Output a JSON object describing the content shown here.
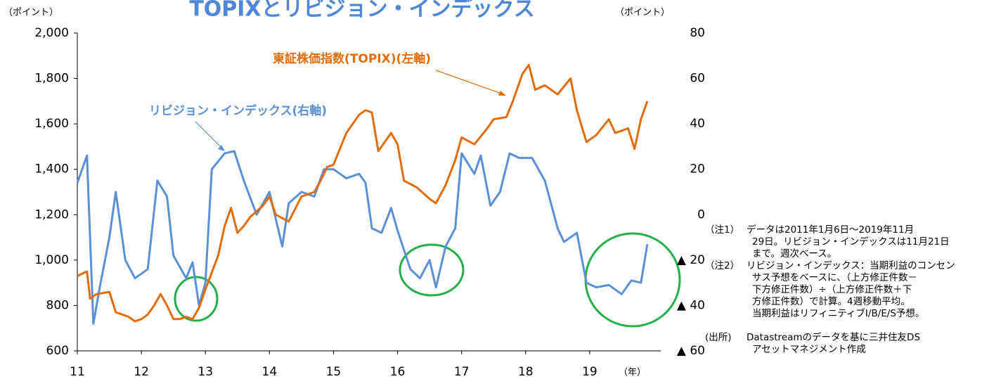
{
  "chart_data": {
    "type": "line",
    "title": "TOPIXとリビジョン・インデックス",
    "y_unit": "（ポイント）",
    "y2_unit": "（ポイント）",
    "x_unit": "（年）",
    "xlim": [
      2011,
      2020
    ],
    "xticks": [
      {
        "value": 2011,
        "label": "11"
      },
      {
        "value": 2012,
        "label": "12"
      },
      {
        "value": 2013,
        "label": "13"
      },
      {
        "value": 2014,
        "label": "14"
      },
      {
        "value": 2015,
        "label": "15"
      },
      {
        "value": 2016,
        "label": "16"
      },
      {
        "value": 2017,
        "label": "17"
      },
      {
        "value": 2018,
        "label": "18"
      },
      {
        "value": 2019,
        "label": "19"
      }
    ],
    "ylim": [
      600,
      2000
    ],
    "yticks": [
      600,
      800,
      {
        "value": 1000,
        "label": "1,000"
      },
      {
        "value": 1200,
        "label": "1,200"
      },
      {
        "value": 1400,
        "label": "1,400"
      },
      {
        "value": 1600,
        "label": "1,600"
      },
      {
        "value": 1800,
        "label": "1,800"
      },
      {
        "value": 2000,
        "label": "2,000"
      }
    ],
    "y2lim": [
      -60,
      80
    ],
    "y2ticks": [
      {
        "value": -60,
        "label": "▲ 60"
      },
      {
        "value": -40,
        "label": "▲ 40"
      },
      {
        "value": -20,
        "label": "▲ 20"
      },
      0,
      20,
      40,
      60,
      80
    ],
    "series": [
      {
        "name": "東証株価指数(TOPIX)(左軸)",
        "color": "#e36c0a",
        "x": [
          2011.0,
          2011.15,
          2011.2,
          2011.3,
          2011.5,
          2011.6,
          2011.8,
          2011.9,
          2012.0,
          2012.1,
          2012.2,
          2012.3,
          2012.4,
          2012.5,
          2012.6,
          2012.7,
          2012.8,
          2012.9,
          2013.0,
          2013.2,
          2013.3,
          2013.4,
          2013.5,
          2013.6,
          2013.7,
          2013.9,
          2014.0,
          2014.1,
          2014.3,
          2014.5,
          2014.7,
          2014.8,
          2014.9,
          2015.0,
          2015.2,
          2015.4,
          2015.5,
          2015.6,
          2015.7,
          2015.9,
          2016.0,
          2016.1,
          2016.3,
          2016.5,
          2016.6,
          2016.75,
          2016.9,
          2017.0,
          2017.2,
          2017.4,
          2017.5,
          2017.7,
          2017.8,
          2017.95,
          2018.05,
          2018.15,
          2018.3,
          2018.5,
          2018.7,
          2018.8,
          2018.95,
          2019.1,
          2019.3,
          2019.4,
          2019.6,
          2019.7,
          2019.8,
          2019.9
        ],
        "values": [
          930,
          950,
          830,
          850,
          860,
          770,
          750,
          730,
          740,
          760,
          800,
          850,
          800,
          740,
          740,
          750,
          740,
          790,
          870,
          1020,
          1150,
          1230,
          1120,
          1150,
          1190,
          1240,
          1280,
          1200,
          1170,
          1280,
          1300,
          1350,
          1410,
          1420,
          1560,
          1640,
          1660,
          1650,
          1480,
          1560,
          1510,
          1350,
          1320,
          1270,
          1250,
          1330,
          1440,
          1540,
          1510,
          1580,
          1620,
          1630,
          1700,
          1820,
          1860,
          1750,
          1770,
          1730,
          1800,
          1660,
          1520,
          1550,
          1620,
          1560,
          1580,
          1490,
          1620,
          1700
        ]
      },
      {
        "name": "リビジョン・インデックス(右軸)",
        "color": "#5b8fd6",
        "axis": "y2",
        "x": [
          2011.0,
          2011.15,
          2011.25,
          2011.35,
          2011.5,
          2011.6,
          2011.75,
          2011.9,
          2012.1,
          2012.25,
          2012.4,
          2012.5,
          2012.7,
          2012.8,
          2012.9,
          2013.0,
          2013.1,
          2013.3,
          2013.45,
          2013.6,
          2013.8,
          2014.0,
          2014.2,
          2014.3,
          2014.5,
          2014.7,
          2014.85,
          2015.0,
          2015.2,
          2015.4,
          2015.5,
          2015.6,
          2015.75,
          2015.9,
          2016.0,
          2016.2,
          2016.35,
          2016.5,
          2016.6,
          2016.75,
          2016.9,
          2017.0,
          2017.2,
          2017.3,
          2017.45,
          2017.6,
          2017.75,
          2017.9,
          2018.1,
          2018.3,
          2018.5,
          2018.6,
          2018.8,
          2018.95,
          2019.1,
          2019.3,
          2019.5,
          2019.65,
          2019.8,
          2019.9
        ],
        "values": [
          14,
          26,
          -48,
          -32,
          -10,
          10,
          -20,
          -28,
          -24,
          15,
          8,
          -18,
          -28,
          -21,
          -40,
          -30,
          20,
          27,
          28,
          15,
          0,
          10,
          -14,
          5,
          10,
          8,
          20,
          20,
          16,
          18,
          14,
          -6,
          -8,
          3,
          -7,
          -24,
          -28,
          -20,
          -32,
          -14,
          -6,
          27,
          18,
          26,
          4,
          10,
          27,
          25,
          25,
          15,
          -6,
          -12,
          -8,
          -30,
          -32,
          -31,
          -35,
          -29,
          -30,
          -13
        ]
      }
    ]
  },
  "notes": [
    {
      "label": "（注1）",
      "lines": [
        "データは2011年1月6日～2019年11月",
        "29日。リビジョン・インデックスは11月21日",
        "まで。週次ベース。"
      ]
    },
    {
      "label": "（注2）",
      "lines": [
        "リビジョン・インデックス：当期利益のコンセン",
        "サス予想をベースに、（上方修正件数－",
        "下方修正件数）÷（上方修正件数＋下",
        "方修正件数）で計算。4週移動平均。",
        "当期利益はリフィニティブI/B/E/S予想。"
      ]
    },
    {
      "label": "(出所)",
      "lines": [
        "Datastreamのデータを基に三井住友DS",
        "アセットマネジメント作成"
      ]
    }
  ]
}
